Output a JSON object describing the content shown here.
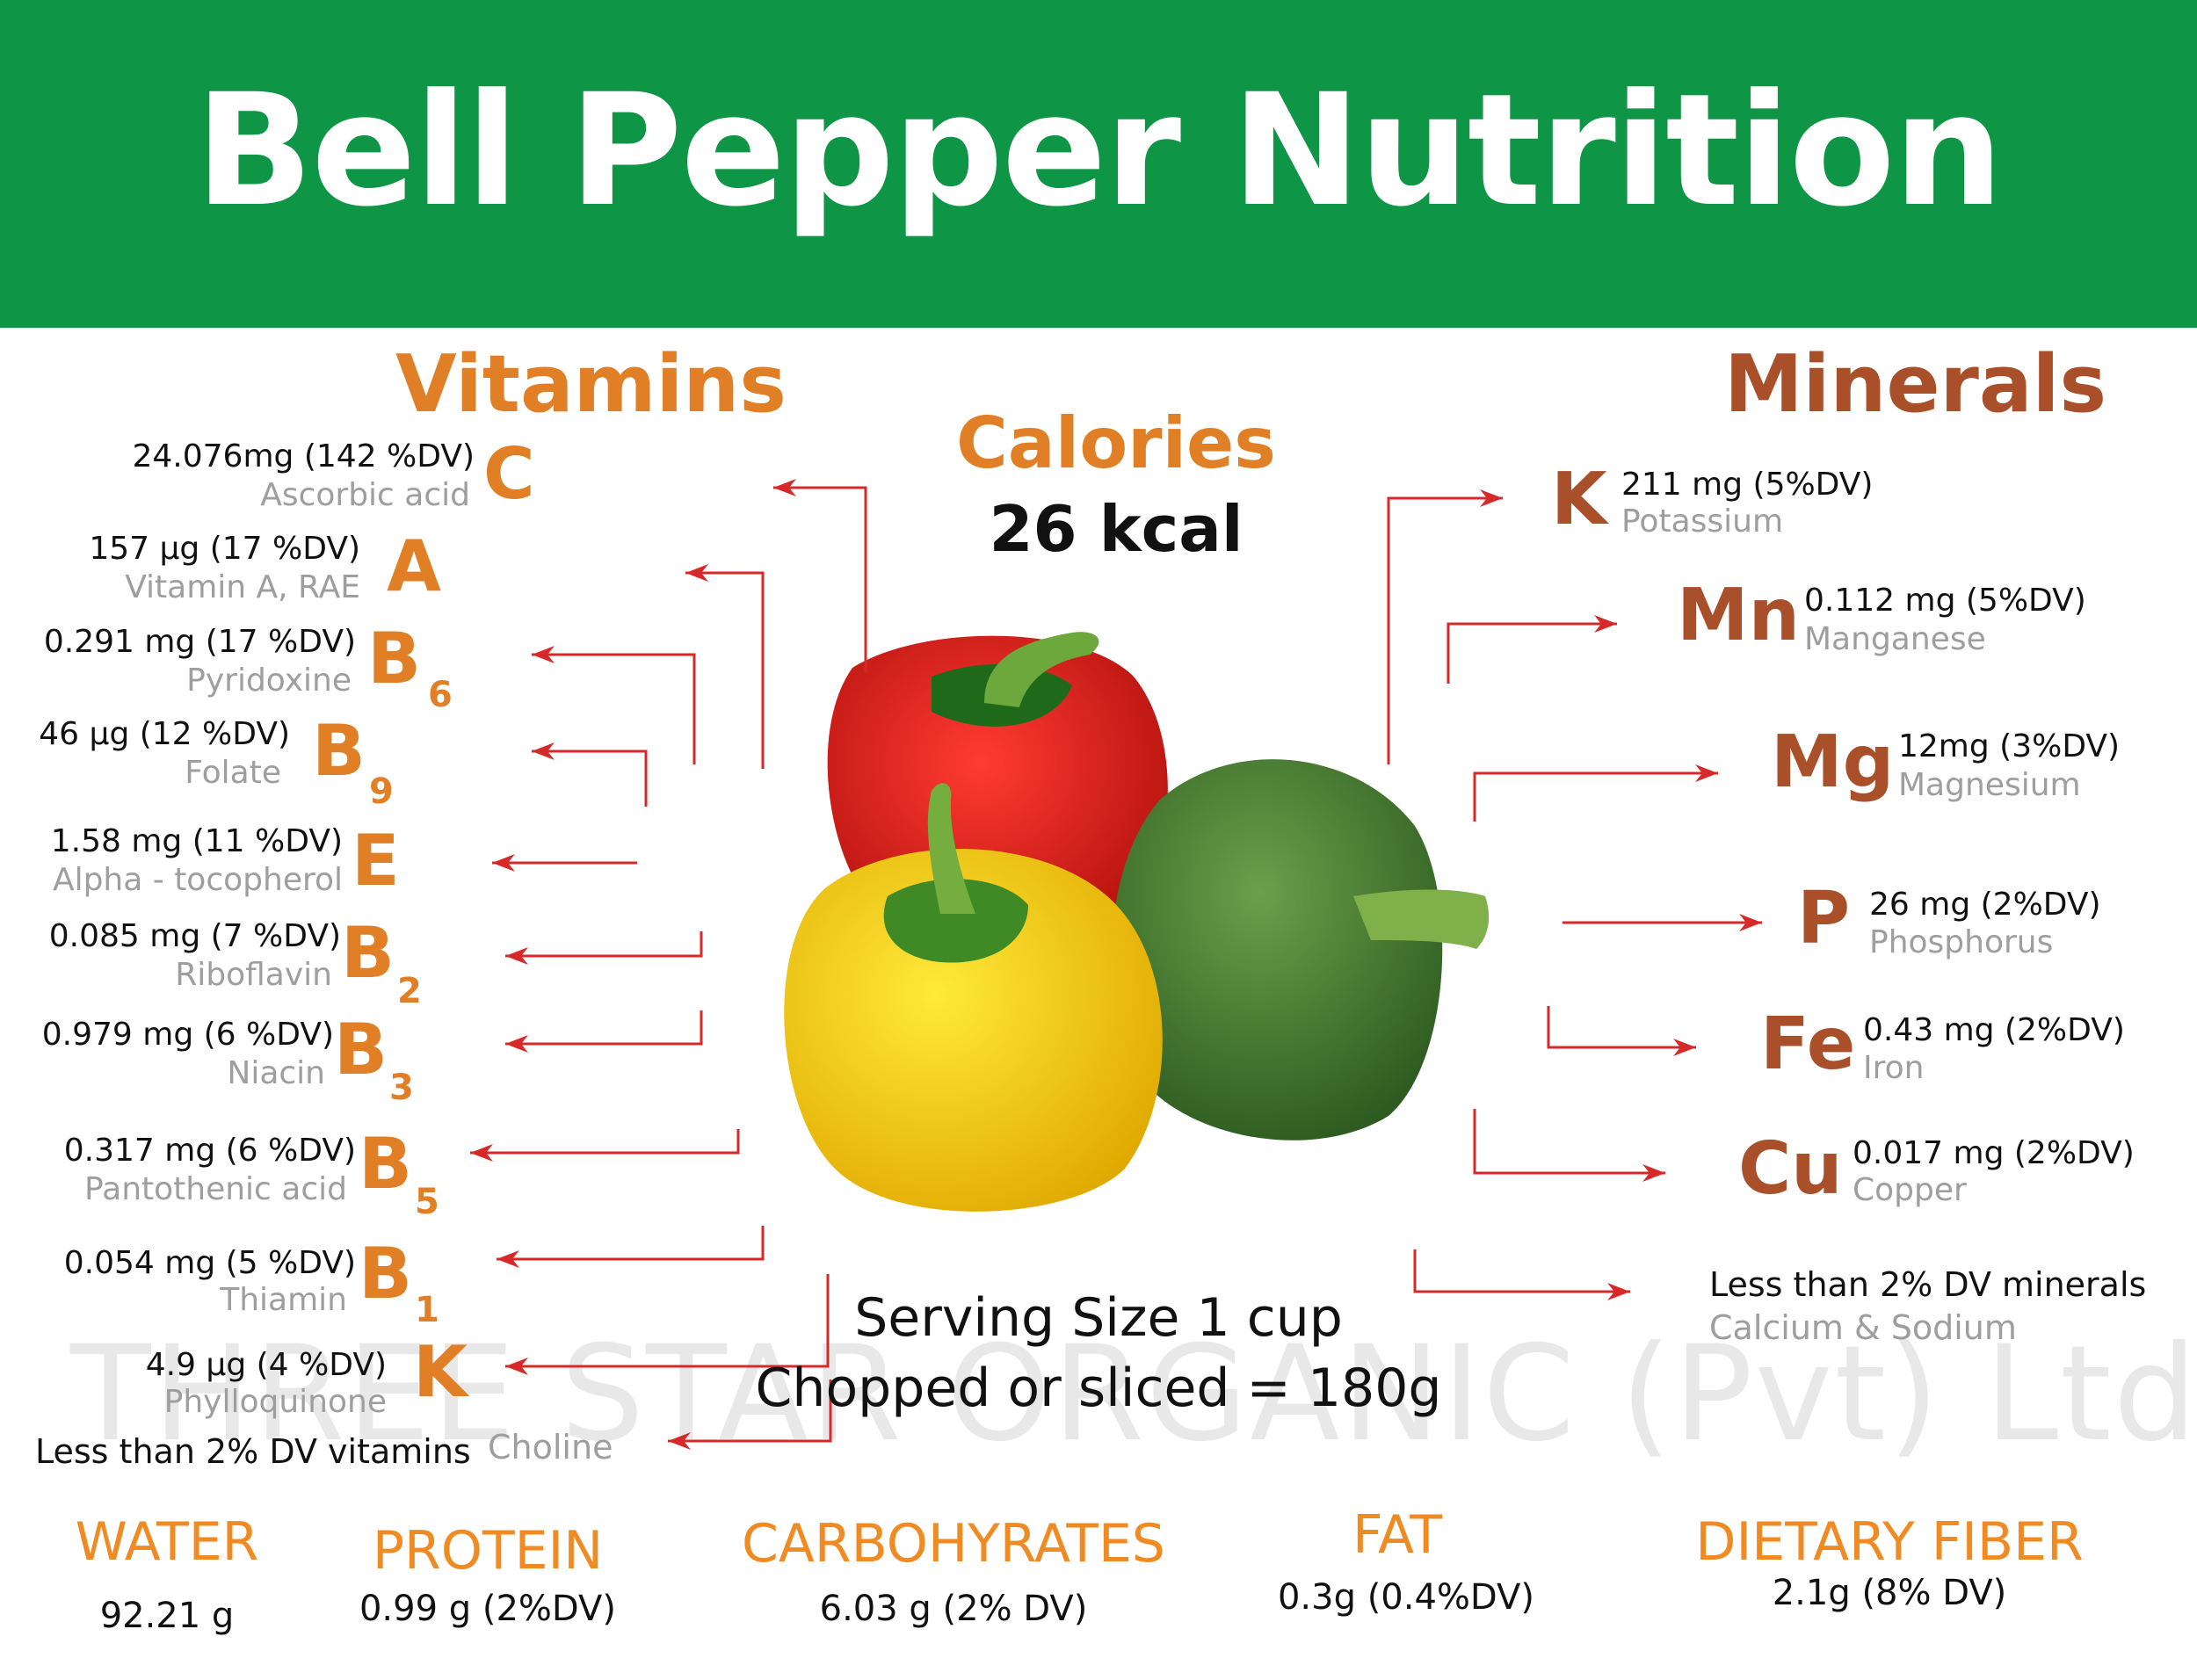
{
  "title": "Bell Pepper Nutrition",
  "colors": {
    "banner": "#0f9546",
    "vitamins": "#e07f26",
    "minerals": "#a9502a",
    "arrows": "#d62a2a",
    "names": "#9e9e9e"
  },
  "vitamins": {
    "heading": "Vitamins",
    "items": [
      {
        "symbol": "C",
        "sub": "",
        "amount": "24.076mg  (142 %DV)",
        "name": "Ascorbic acid"
      },
      {
        "symbol": "A",
        "sub": "",
        "amount": "157 µg  (17 %DV)",
        "name": "Vitamin A, RAE"
      },
      {
        "symbol": "B",
        "sub": "6",
        "amount": "0.291 mg  (17 %DV)",
        "name": "Pyridoxine"
      },
      {
        "symbol": "B",
        "sub": "9",
        "amount": "46 µg  (12 %DV)",
        "name": "Folate"
      },
      {
        "symbol": "E",
        "sub": "",
        "amount": "1.58 mg  (11 %DV)",
        "name": "Alpha - tocopherol"
      },
      {
        "symbol": "B",
        "sub": "2",
        "amount": "0.085 mg  (7 %DV)",
        "name": "Riboflavin"
      },
      {
        "symbol": "B",
        "sub": "3",
        "amount": "0.979 mg  (6 %DV)",
        "name": "Niacin"
      },
      {
        "symbol": "B",
        "sub": "5",
        "amount": "0.317 mg  (6 %DV)",
        "name": "Pantothenic acid"
      },
      {
        "symbol": "B",
        "sub": "1",
        "amount": "0.054 mg  (5 %DV)",
        "name": "Thiamin"
      },
      {
        "symbol": "K",
        "sub": "",
        "amount": "4.9 µg  (4 %DV)",
        "name": "Phylloquinone"
      }
    ],
    "less_than": "Less than 2% DV vitamins",
    "less_than_name": "Choline"
  },
  "calories": {
    "label": "Calories",
    "value": "26 kcal"
  },
  "minerals": {
    "heading": "Minerals",
    "items": [
      {
        "symbol": "K",
        "amount": "211 mg (5%DV)",
        "name": "Potassium"
      },
      {
        "symbol": "Mn",
        "amount": "0.112 mg (5%DV)",
        "name": "Manganese"
      },
      {
        "symbol": "Mg",
        "amount": "12mg (3%DV)",
        "name": "Magnesium"
      },
      {
        "symbol": "P",
        "amount": "26 mg (2%DV)",
        "name": "Phosphorus"
      },
      {
        "symbol": "Fe",
        "amount": "0.43 mg (2%DV)",
        "name": "Iron"
      },
      {
        "symbol": "Cu",
        "amount": "0.017 mg (2%DV)",
        "name": "Copper"
      }
    ],
    "less_than": "Less than 2% DV minerals",
    "less_than_name": "Calcium & Sodium"
  },
  "serving": {
    "line1": "Serving Size 1 cup",
    "line2": "Chopped or sliced = 180g"
  },
  "watermark": "THREE STAR ORGANIC (Pvt) Ltd",
  "macros": [
    {
      "label": "WATER",
      "value": "92.21  g"
    },
    {
      "label": "PROTEIN",
      "value": "0.99 g (2%DV)"
    },
    {
      "label": "CARBOHYRATES",
      "value": "6.03 g (2% DV)"
    },
    {
      "label": "FAT",
      "value": "0.3g (0.4%DV)"
    },
    {
      "label": "DIETARY FIBER",
      "value": "2.1g (8% DV)"
    }
  ]
}
